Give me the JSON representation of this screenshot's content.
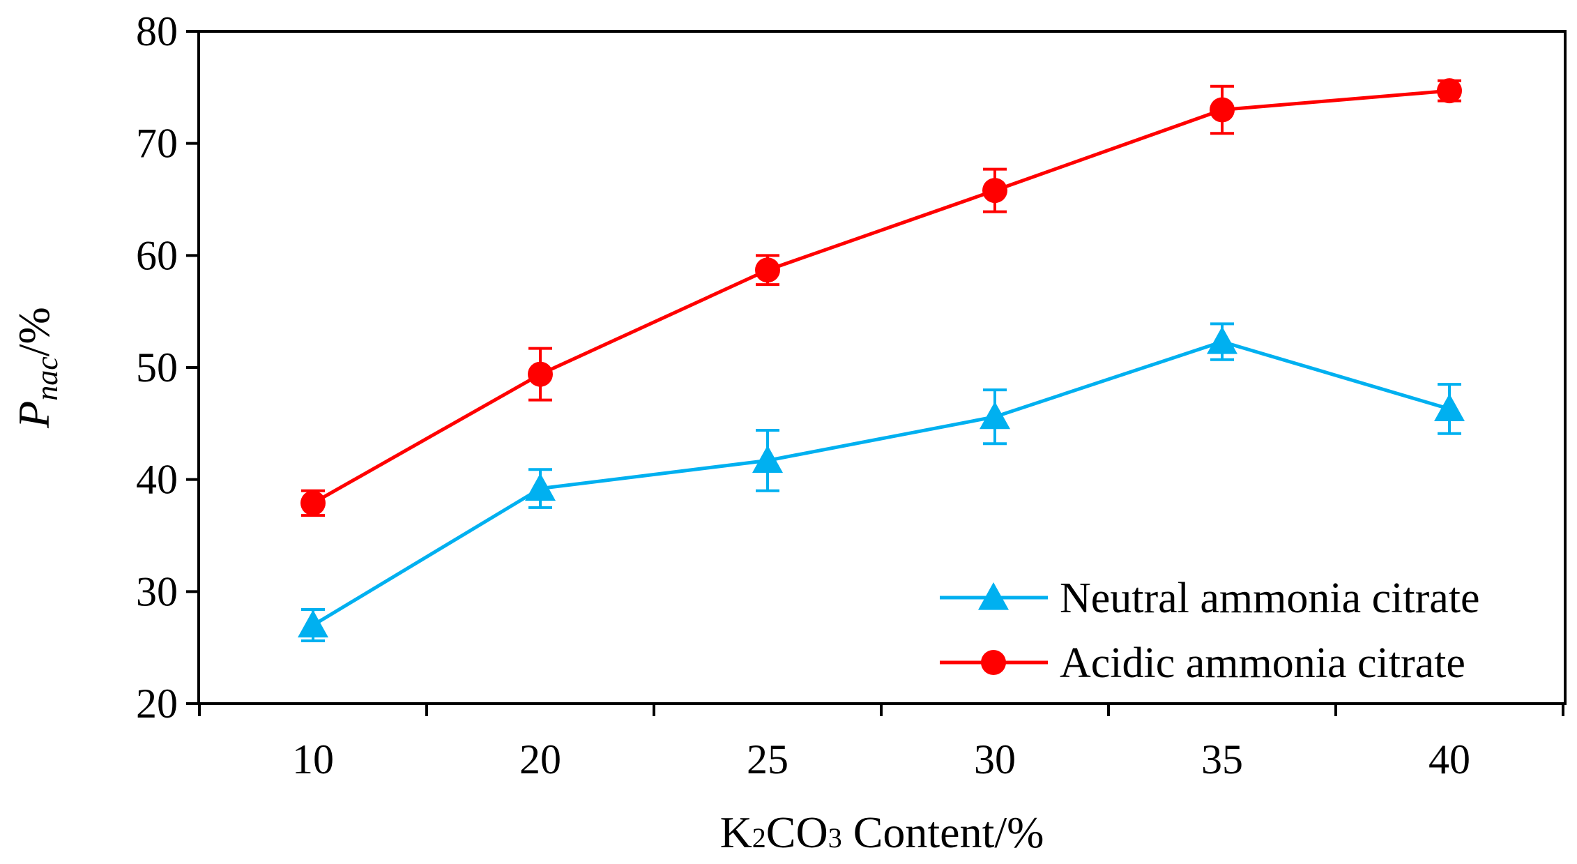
{
  "chart_data": {
    "type": "line",
    "title": "",
    "xlabel": {
      "prefix": "K",
      "sub1": "2",
      "middle": "CO",
      "sub2": "3",
      "suffix": " Content/%"
    },
    "ylabel": {
      "main": "P",
      "sub": "nac",
      "suffix": "/%"
    },
    "categories": [
      "10",
      "20",
      "25",
      "30",
      "35",
      "40"
    ],
    "ylim": [
      20,
      80
    ],
    "yticks": [
      20,
      30,
      40,
      50,
      60,
      70,
      80
    ],
    "legend_position": "bottom-right",
    "series": [
      {
        "name": "Neutral ammonia citrate",
        "color": "#00b0f0",
        "marker": "triangle",
        "values": [
          27.0,
          39.2,
          41.7,
          45.6,
          52.3,
          46.3
        ],
        "errors": [
          1.4,
          1.7,
          2.7,
          2.4,
          1.6,
          2.2
        ]
      },
      {
        "name": "Acidic ammonia citrate",
        "color": "#ff0000",
        "marker": "circle",
        "values": [
          37.9,
          49.4,
          58.7,
          65.8,
          73.0,
          74.7
        ],
        "errors": [
          1.1,
          2.3,
          1.3,
          1.9,
          2.1,
          0.9
        ]
      }
    ]
  }
}
